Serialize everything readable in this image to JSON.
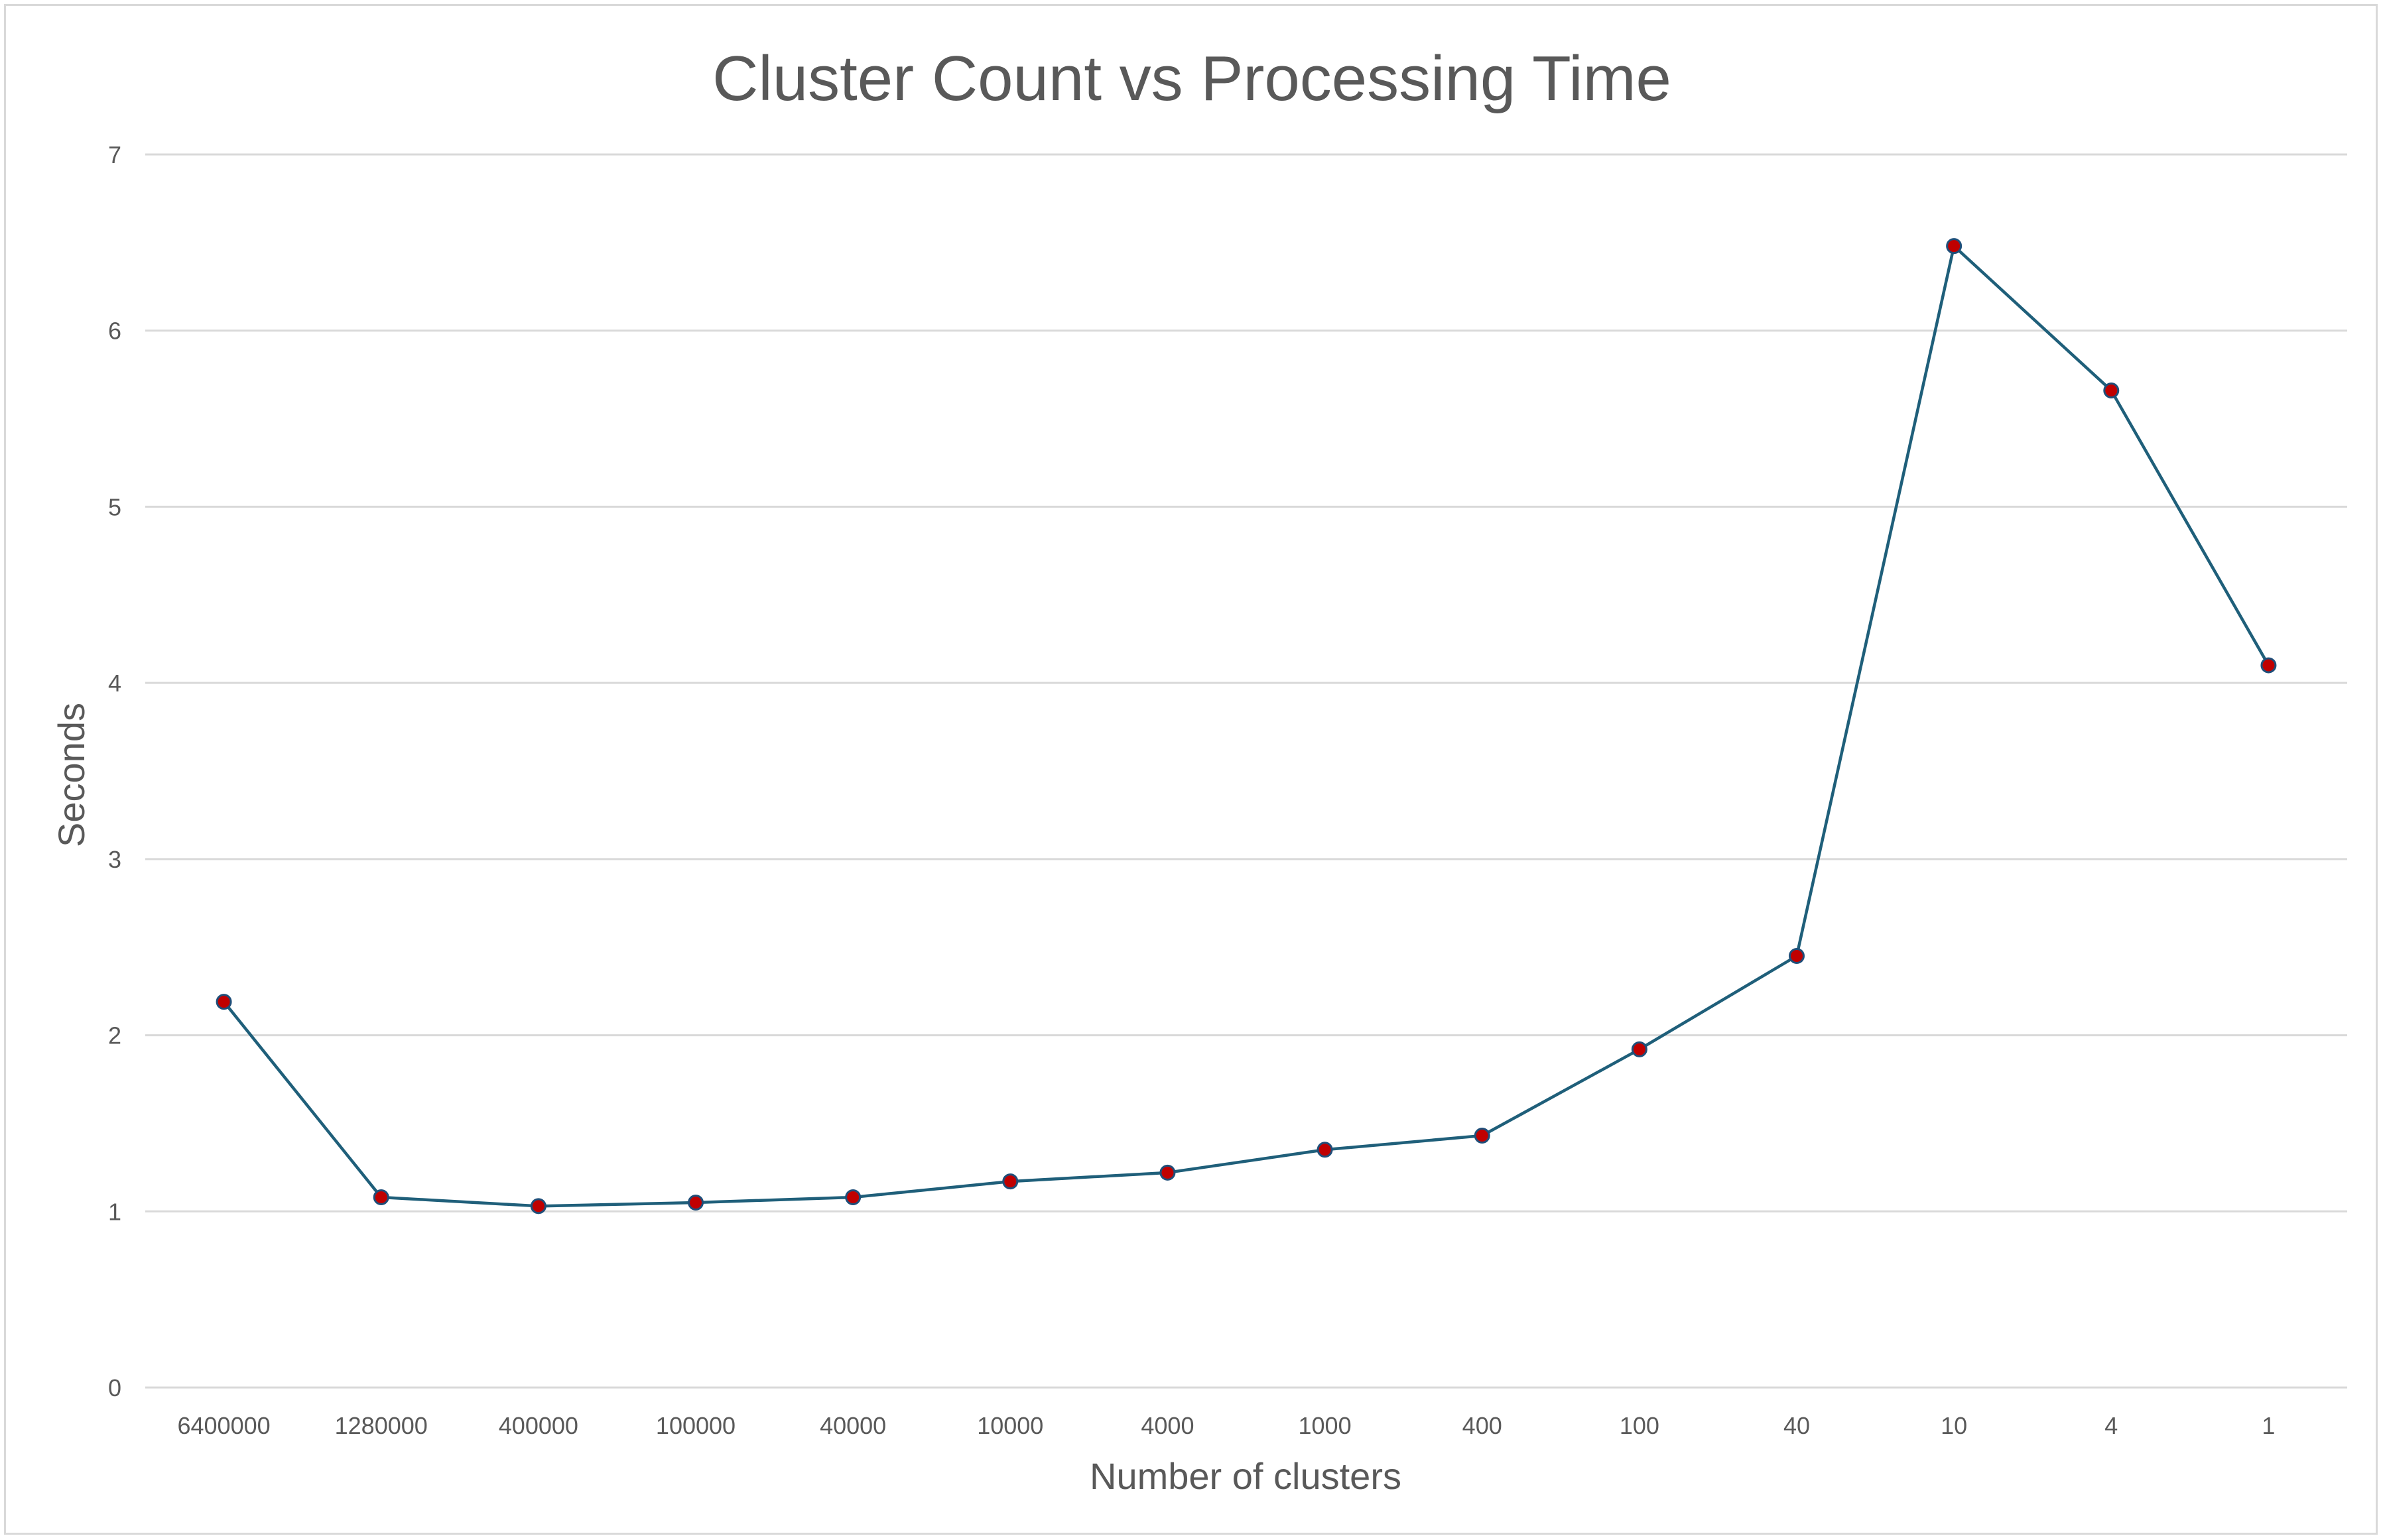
{
  "chart_data": {
    "type": "line",
    "title": "Cluster Count vs Processing Time",
    "xlabel": "Number of clusters",
    "ylabel": "Seconds",
    "categories": [
      "6400000",
      "1280000",
      "400000",
      "100000",
      "40000",
      "10000",
      "4000",
      "1000",
      "400",
      "100",
      "40",
      "10",
      "4",
      "1"
    ],
    "series": [
      {
        "values": [
          2.19,
          1.08,
          1.03,
          1.05,
          1.08,
          1.17,
          1.22,
          1.35,
          1.43,
          1.92,
          2.45,
          6.48,
          5.66,
          4.1
        ]
      }
    ],
    "ylim": [
      0,
      7
    ],
    "yticks": [
      0,
      1,
      2,
      3,
      4,
      5,
      6,
      7
    ],
    "grid": true,
    "legend": "none",
    "colors": {
      "line": "#1f5f7a",
      "marker_fill": "#c00000",
      "marker_edge": "#1f4e79",
      "grid": "#d9d9d9",
      "text": "#595959"
    }
  }
}
